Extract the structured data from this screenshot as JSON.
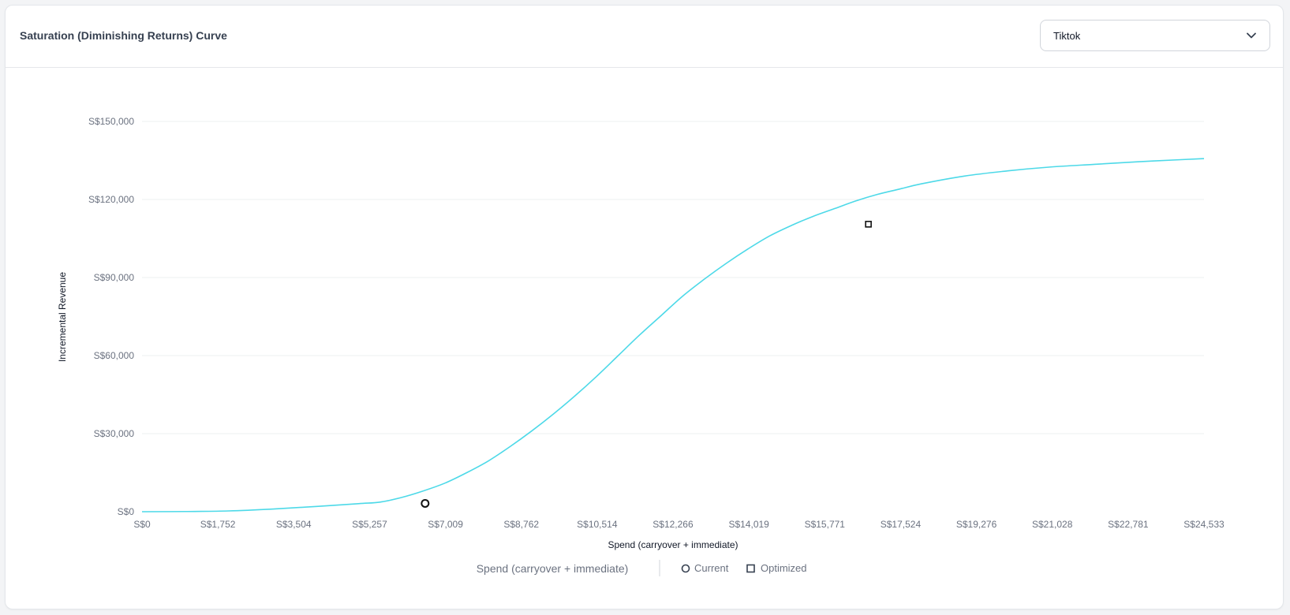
{
  "card": {
    "title": "Saturation (Diminishing Returns) Curve",
    "channel_select": {
      "value": "Tiktok"
    }
  },
  "colors": {
    "curve": "#4dd9e8",
    "grid": "#eef0f2",
    "marker": "#111111"
  },
  "chart_data": {
    "type": "line",
    "xlabel": "Spend (carryover + immediate)",
    "ylabel": "Incremental Revenue",
    "x_tick_labels": [
      "S$0",
      "S$1,752",
      "S$3,504",
      "S$5,257",
      "S$7,009",
      "S$8,762",
      "S$10,514",
      "S$12,266",
      "S$14,019",
      "S$15,771",
      "S$17,524",
      "S$19,276",
      "S$21,028",
      "S$22,781",
      "S$24,533"
    ],
    "x_ticks": [
      0,
      1752,
      3504,
      5257,
      7009,
      8762,
      10514,
      12266,
      14019,
      15771,
      17524,
      19276,
      21028,
      22781,
      24533
    ],
    "y_tick_labels": [
      "S$0",
      "S$30,000",
      "S$60,000",
      "S$90,000",
      "S$120,000",
      "S$150,000"
    ],
    "y_ticks": [
      0,
      30000,
      60000,
      90000,
      120000,
      150000
    ],
    "xlim": [
      0,
      24533
    ],
    "ylim": [
      0,
      150000
    ],
    "grid": true,
    "series": [
      {
        "x": [
          0,
          1000,
          2000,
          3000,
          4000,
          5000,
          5500,
          6000,
          6500,
          7000,
          7500,
          8000,
          8500,
          9000,
          9500,
          10000,
          10500,
          11000,
          11500,
          12000,
          12500,
          13000,
          13500,
          14000,
          14500,
          15000,
          15500,
          16000,
          16500,
          17000,
          17500,
          18000,
          19000,
          20000,
          21000,
          22000,
          23000,
          24000,
          24533
        ],
        "y": [
          0,
          80,
          300,
          1000,
          2000,
          3100,
          3700,
          5500,
          8000,
          11000,
          15000,
          19500,
          25000,
          31000,
          37500,
          44500,
          52000,
          60000,
          68000,
          75500,
          83000,
          89500,
          95500,
          101000,
          106000,
          110000,
          113500,
          116500,
          119500,
          122000,
          124000,
          126000,
          129000,
          131000,
          132500,
          133500,
          134500,
          135300,
          135700
        ]
      }
    ],
    "points": [
      {
        "label": "Current",
        "x": 6540,
        "y": 3200,
        "marker": "circle"
      },
      {
        "label": "Optimized",
        "x": 16780,
        "y": 110500,
        "marker": "square"
      }
    ],
    "legend": {
      "title": "Spend (carryover + immediate)",
      "placement": "bottom-center",
      "items": [
        {
          "label": "Current",
          "marker": "circle"
        },
        {
          "label": "Optimized",
          "marker": "square"
        }
      ]
    }
  }
}
